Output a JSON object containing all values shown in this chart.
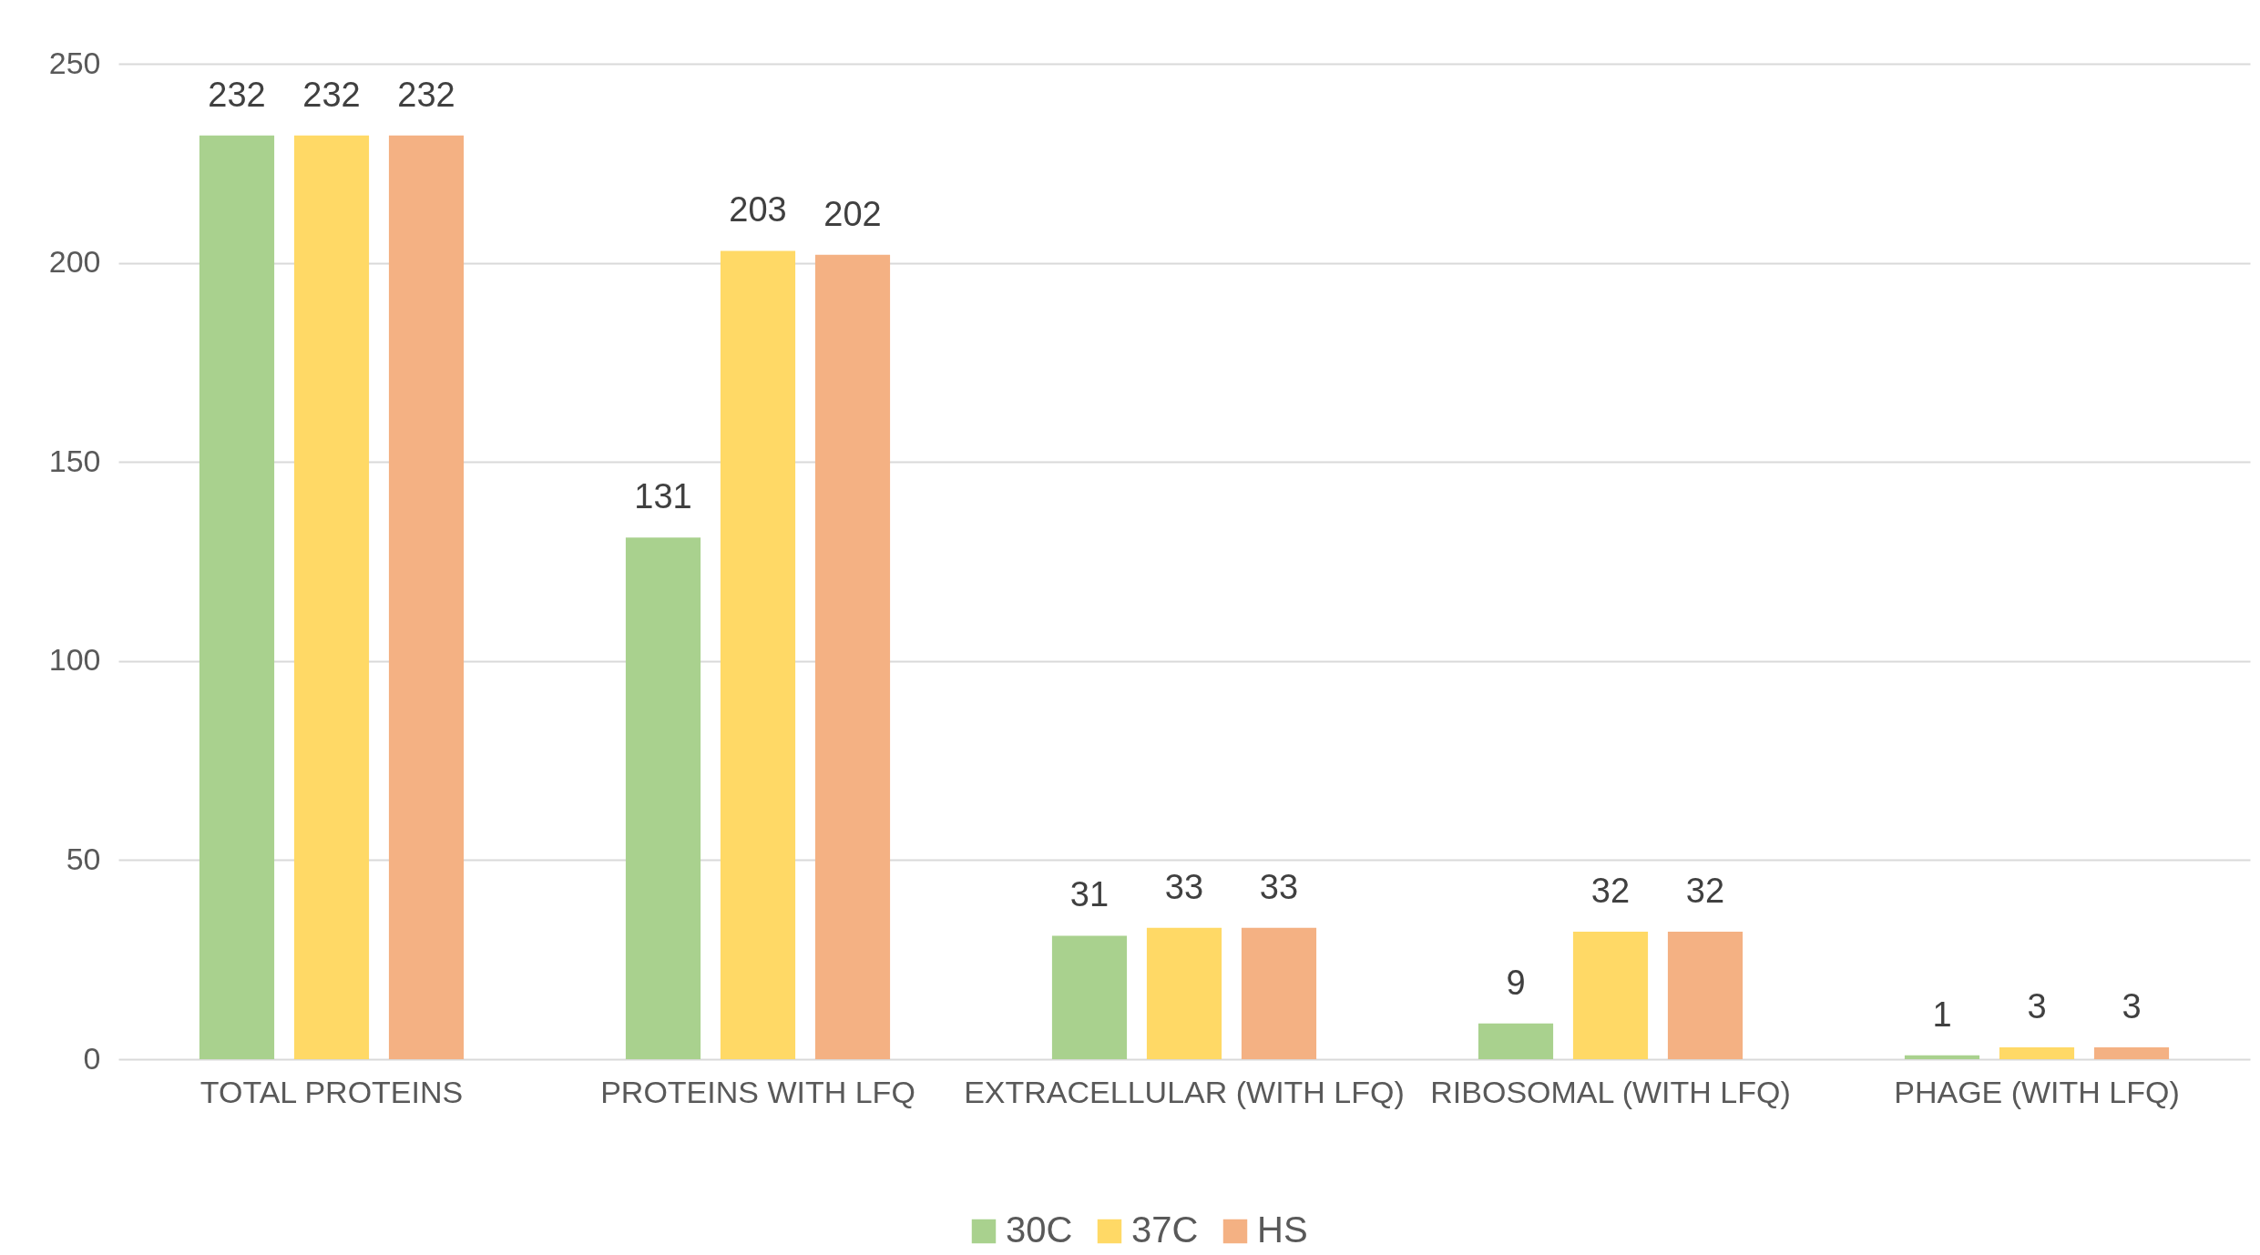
{
  "chart_data": {
    "type": "bar",
    "categories": [
      "TOTAL PROTEINS",
      "PROTEINS WITH LFQ",
      "EXTRACELLULAR (WITH LFQ)",
      "RIBOSOMAL (WITH LFQ)",
      "PHAGE (WITH LFQ)"
    ],
    "series": [
      {
        "name": "30C",
        "color": "#a9d18e",
        "values": [
          232,
          131,
          31,
          9,
          1
        ]
      },
      {
        "name": "37C",
        "color": "#ffd966",
        "values": [
          232,
          203,
          33,
          32,
          3
        ]
      },
      {
        "name": "HS",
        "color": "#f4b183",
        "values": [
          232,
          202,
          33,
          32,
          3
        ]
      }
    ],
    "ylim": [
      0,
      250
    ],
    "yticks": [
      0,
      50,
      100,
      150,
      200,
      250
    ],
    "grid": "y",
    "legend": "bottom",
    "data_labels": true
  }
}
